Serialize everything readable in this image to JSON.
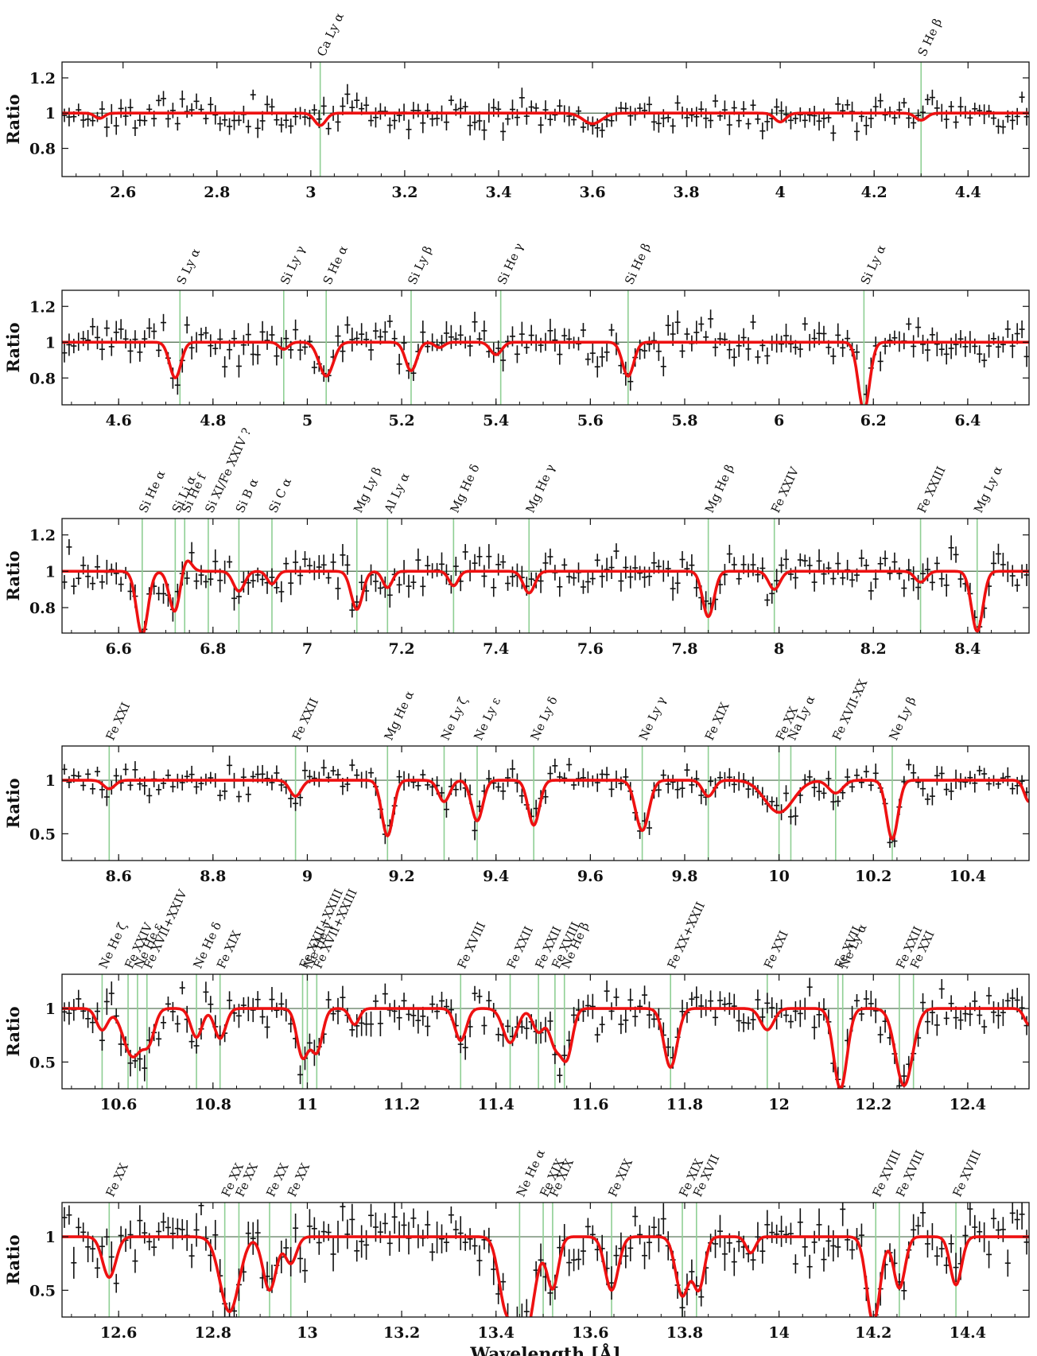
{
  "chart_data": [
    {
      "type": "line",
      "ylabel": "Ratio",
      "xlim": [
        2.47,
        4.53
      ],
      "ylim": [
        0.64,
        1.29
      ],
      "xticks": [
        2.6,
        2.8,
        3,
        3.2,
        3.4,
        3.6,
        3.8,
        4,
        4.2,
        4.4
      ],
      "xtick_labels": [
        "2.6",
        "2.8",
        "3",
        "3.2",
        "3.4",
        "3.6",
        "3.8",
        "4",
        "4.2",
        "4.4"
      ],
      "yticks": [
        0.8,
        1,
        1.2
      ],
      "ytick_labels": [
        "0.8",
        "1",
        "1.2"
      ],
      "reference_line": 1,
      "lines": [
        {
          "label": "Ca Ly α",
          "x": 3.02
        },
        {
          "label": "S He β",
          "x": 4.3
        }
      ],
      "absorption": [
        {
          "x": 2.55,
          "depth": 0.03,
          "width": 0.01
        },
        {
          "x": 3.02,
          "depth": 0.07,
          "width": 0.012
        },
        {
          "x": 3.6,
          "depth": 0.06,
          "width": 0.02
        },
        {
          "x": 4.0,
          "depth": 0.05,
          "width": 0.012
        },
        {
          "x": 4.3,
          "depth": 0.04,
          "width": 0.012
        }
      ],
      "scatter": 0.05,
      "seed": 11
    },
    {
      "type": "line",
      "ylabel": "Ratio",
      "xlim": [
        4.48,
        6.53
      ],
      "ylim": [
        0.65,
        1.29
      ],
      "xticks": [
        4.6,
        4.8,
        5,
        5.2,
        5.4,
        5.6,
        5.8,
        6,
        6.2,
        6.4
      ],
      "xtick_labels": [
        "4.6",
        "4.8",
        "5",
        "5.2",
        "5.4",
        "5.6",
        "5.8",
        "6",
        "6.2",
        "6.4"
      ],
      "yticks": [
        0.8,
        1,
        1.2
      ],
      "ytick_labels": [
        "0.8",
        "1",
        "1.2"
      ],
      "reference_line": 1,
      "lines": [
        {
          "label": "S Ly α",
          "x": 4.73
        },
        {
          "label": "Si Ly γ",
          "x": 4.95
        },
        {
          "label": "S He α",
          "x": 5.04
        },
        {
          "label": "Si Ly β",
          "x": 5.22
        },
        {
          "label": "Si He γ",
          "x": 5.41
        },
        {
          "label": "Si He β",
          "x": 5.68
        },
        {
          "label": "Si Ly α",
          "x": 6.18
        }
      ],
      "absorption": [
        {
          "x": 4.72,
          "depth": 0.2,
          "width": 0.012
        },
        {
          "x": 4.95,
          "depth": 0.04,
          "width": 0.01
        },
        {
          "x": 5.04,
          "depth": 0.19,
          "width": 0.015
        },
        {
          "x": 5.22,
          "depth": 0.16,
          "width": 0.012
        },
        {
          "x": 5.28,
          "depth": 0.03,
          "width": 0.01
        },
        {
          "x": 5.4,
          "depth": 0.07,
          "width": 0.012
        },
        {
          "x": 5.68,
          "depth": 0.19,
          "width": 0.012
        },
        {
          "x": 6.18,
          "depth": 0.38,
          "width": 0.012
        }
      ],
      "scatter": 0.06,
      "seed": 23
    },
    {
      "type": "line",
      "ylabel": "Ratio",
      "xlim": [
        6.48,
        8.53
      ],
      "ylim": [
        0.66,
        1.29
      ],
      "xticks": [
        6.6,
        6.8,
        7,
        7.2,
        7.4,
        7.6,
        7.8,
        8,
        8.2,
        8.4
      ],
      "xtick_labels": [
        "6.6",
        "6.8",
        "7",
        "7.2",
        "7.4",
        "7.6",
        "7.8",
        "8",
        "8.2",
        "8.4"
      ],
      "yticks": [
        0.8,
        1,
        1.2
      ],
      "ytick_labels": [
        "0.8",
        "1",
        "1.2"
      ],
      "reference_line": 1,
      "lines": [
        {
          "label": "Si He α",
          "x": 6.65
        },
        {
          "label": "Si Li α",
          "x": 6.72
        },
        {
          "label": "Si He f",
          "x": 6.74
        },
        {
          "label": "Si XI/Fe XXIV ?",
          "x": 6.79
        },
        {
          "label": "Si B α",
          "x": 6.855
        },
        {
          "label": "Si C α",
          "x": 6.925
        },
        {
          "label": "Mg Ly β",
          "x": 7.105
        },
        {
          "label": "Al Ly α",
          "x": 7.17
        },
        {
          "label": "Mg He δ",
          "x": 7.31
        },
        {
          "label": "Mg He γ",
          "x": 7.47
        },
        {
          "label": "Mg He β",
          "x": 7.85
        },
        {
          "label": "Fe XXIV",
          "x": 7.99
        },
        {
          "label": "Fe XXIII",
          "x": 8.3
        },
        {
          "label": "Mg Ly α",
          "x": 8.42
        }
      ],
      "absorption": [
        {
          "x": 6.65,
          "depth": 0.35,
          "width": 0.012
        },
        {
          "x": 6.72,
          "depth": 0.24,
          "width": 0.012
        },
        {
          "x": 6.74,
          "depth": -0.09,
          "width": 0.012
        },
        {
          "x": 6.855,
          "depth": 0.11,
          "width": 0.012
        },
        {
          "x": 6.925,
          "depth": 0.07,
          "width": 0.01
        },
        {
          "x": 7.105,
          "depth": 0.21,
          "width": 0.012
        },
        {
          "x": 7.17,
          "depth": 0.09,
          "width": 0.01
        },
        {
          "x": 7.31,
          "depth": 0.08,
          "width": 0.01
        },
        {
          "x": 7.47,
          "depth": 0.12,
          "width": 0.012
        },
        {
          "x": 7.85,
          "depth": 0.25,
          "width": 0.012
        },
        {
          "x": 7.99,
          "depth": 0.1,
          "width": 0.012
        },
        {
          "x": 8.3,
          "depth": 0.06,
          "width": 0.012
        },
        {
          "x": 8.42,
          "depth": 0.33,
          "width": 0.012
        }
      ],
      "scatter": 0.06,
      "seed": 37
    },
    {
      "type": "line",
      "ylabel": "Ratio",
      "xlim": [
        8.48,
        10.53
      ],
      "ylim": [
        0.25,
        1.32
      ],
      "xticks": [
        8.6,
        8.8,
        9,
        9.2,
        9.4,
        9.6,
        9.8,
        10,
        10.2,
        10.4
      ],
      "xtick_labels": [
        "8.6",
        "8.8",
        "9",
        "9.2",
        "9.4",
        "9.6",
        "9.8",
        "10",
        "10.2",
        "10.4"
      ],
      "yticks": [
        0.5,
        1
      ],
      "ytick_labels": [
        "0.5",
        "1"
      ],
      "reference_line": 1,
      "lines": [
        {
          "label": "Fe XXI",
          "x": 8.58
        },
        {
          "label": "Fe XXII",
          "x": 8.975
        },
        {
          "label": "Mg He α",
          "x": 9.17
        },
        {
          "label": "Ne Ly ζ",
          "x": 9.29
        },
        {
          "label": "Ne Ly ε",
          "x": 9.36
        },
        {
          "label": "Ne Ly δ",
          "x": 9.48
        },
        {
          "label": "Ne Ly γ",
          "x": 9.71
        },
        {
          "label": "Fe XIX",
          "x": 9.85
        },
        {
          "label": "Fe XX",
          "x": 10.0
        },
        {
          "label": "Na Ly α",
          "x": 10.025
        },
        {
          "label": "Fe XVII-XX",
          "x": 10.12
        },
        {
          "label": "Ne Ly β",
          "x": 10.24
        }
      ],
      "absorption": [
        {
          "x": 8.58,
          "depth": 0.08,
          "width": 0.012
        },
        {
          "x": 8.975,
          "depth": 0.15,
          "width": 0.012
        },
        {
          "x": 9.17,
          "depth": 0.52,
          "width": 0.012
        },
        {
          "x": 9.29,
          "depth": 0.2,
          "width": 0.012
        },
        {
          "x": 9.36,
          "depth": 0.38,
          "width": 0.012
        },
        {
          "x": 9.48,
          "depth": 0.42,
          "width": 0.012
        },
        {
          "x": 9.71,
          "depth": 0.47,
          "width": 0.014
        },
        {
          "x": 9.85,
          "depth": 0.15,
          "width": 0.012
        },
        {
          "x": 10.0,
          "depth": 0.3,
          "width": 0.03
        },
        {
          "x": 10.12,
          "depth": 0.12,
          "width": 0.015
        },
        {
          "x": 10.24,
          "depth": 0.55,
          "width": 0.012
        },
        {
          "x": 10.53,
          "depth": 0.2,
          "width": 0.01
        }
      ],
      "scatter": 0.08,
      "seed": 53
    },
    {
      "type": "line",
      "ylabel": "Ratio",
      "xlim": [
        10.48,
        12.53
      ],
      "ylim": [
        0.25,
        1.32
      ],
      "xticks": [
        10.6,
        10.8,
        11,
        11.2,
        11.4,
        11.6,
        11.8,
        12,
        12.2,
        12.4
      ],
      "xtick_labels": [
        "10.6",
        "10.8",
        "11",
        "11.2",
        "11.4",
        "11.6",
        "11.8",
        "12",
        "12.2",
        "12.4"
      ],
      "yticks": [
        0.5,
        1
      ],
      "ytick_labels": [
        "0.5",
        "1"
      ],
      "reference_line": 1,
      "lines": [
        {
          "label": "Ne He ζ",
          "x": 10.565
        },
        {
          "label": "Fe XXIV",
          "x": 10.62
        },
        {
          "label": "Ne He ε",
          "x": 10.64
        },
        {
          "label": "Fe XVII+XXIV",
          "x": 10.66
        },
        {
          "label": "Ne He δ",
          "x": 10.765
        },
        {
          "label": "Fe XIX",
          "x": 10.815
        },
        {
          "label": "Fe XXII+XXIII",
          "x": 10.99
        },
        {
          "label": "Ne He γ",
          "x": 11.0
        },
        {
          "label": "Fe XVII+XXIII",
          "x": 11.02
        },
        {
          "label": "Fe XVIII",
          "x": 11.325
        },
        {
          "label": "Fe XXII",
          "x": 11.43
        },
        {
          "label": "Fe XXII",
          "x": 11.49
        },
        {
          "label": "Fe XVIII",
          "x": 11.525
        },
        {
          "label": "Ne He β",
          "x": 11.545
        },
        {
          "label": "Fe XX+XXII",
          "x": 11.77
        },
        {
          "label": "Fe XXI",
          "x": 11.975
        },
        {
          "label": "Fe XVII",
          "x": 12.125
        },
        {
          "label": "Ne Ly α",
          "x": 12.135
        },
        {
          "label": "Fe XXII",
          "x": 12.255
        },
        {
          "label": "Fe XXI",
          "x": 12.285
        }
      ],
      "absorption": [
        {
          "x": 10.565,
          "depth": 0.2,
          "width": 0.012
        },
        {
          "x": 10.63,
          "depth": 0.45,
          "width": 0.02
        },
        {
          "x": 10.665,
          "depth": 0.25,
          "width": 0.012
        },
        {
          "x": 10.765,
          "depth": 0.27,
          "width": 0.012
        },
        {
          "x": 10.815,
          "depth": 0.28,
          "width": 0.012
        },
        {
          "x": 10.99,
          "depth": 0.45,
          "width": 0.012
        },
        {
          "x": 11.02,
          "depth": 0.4,
          "width": 0.012
        },
        {
          "x": 11.1,
          "depth": 0.15,
          "width": 0.01
        },
        {
          "x": 11.325,
          "depth": 0.3,
          "width": 0.012
        },
        {
          "x": 11.43,
          "depth": 0.32,
          "width": 0.015
        },
        {
          "x": 11.49,
          "depth": 0.22,
          "width": 0.012
        },
        {
          "x": 11.525,
          "depth": 0.33,
          "width": 0.012
        },
        {
          "x": 11.55,
          "depth": 0.45,
          "width": 0.012
        },
        {
          "x": 11.77,
          "depth": 0.55,
          "width": 0.014
        },
        {
          "x": 11.975,
          "depth": 0.2,
          "width": 0.014
        },
        {
          "x": 12.13,
          "depth": 0.75,
          "width": 0.014
        },
        {
          "x": 12.265,
          "depth": 0.72,
          "width": 0.018
        },
        {
          "x": 12.53,
          "depth": 0.15,
          "width": 0.01
        }
      ],
      "scatter": 0.11,
      "seed": 71
    },
    {
      "type": "line",
      "ylabel": "Ratio",
      "xlabel": "Wavelength [Å]",
      "xlim": [
        12.48,
        14.53
      ],
      "ylim": [
        0.25,
        1.32
      ],
      "xticks": [
        12.6,
        12.8,
        13,
        13.2,
        13.4,
        13.6,
        13.8,
        14,
        14.2,
        14.4
      ],
      "xtick_labels": [
        "12.6",
        "12.8",
        "13",
        "13.2",
        "13.4",
        "13.6",
        "13.8",
        "14",
        "14.2",
        "14.4"
      ],
      "yticks": [
        0.5,
        1
      ],
      "ytick_labels": [
        "0.5",
        "1"
      ],
      "reference_line": 1,
      "lines": [
        {
          "label": "Fe XX",
          "x": 12.58
        },
        {
          "label": "Fe XX",
          "x": 12.825
        },
        {
          "label": "Fe XX",
          "x": 12.855
        },
        {
          "label": "Fe XX",
          "x": 12.92
        },
        {
          "label": "Fe XX",
          "x": 12.965
        },
        {
          "label": "Ne He α",
          "x": 13.45
        },
        {
          "label": "Fe XIX",
          "x": 13.5
        },
        {
          "label": "Fe XIX",
          "x": 13.52
        },
        {
          "label": "Fe XIX",
          "x": 13.645
        },
        {
          "label": "Fe XIX",
          "x": 13.795
        },
        {
          "label": "Fe XVII",
          "x": 13.825
        },
        {
          "label": "Fe XVIII",
          "x": 14.205
        },
        {
          "label": "Fe XVIII",
          "x": 14.255
        },
        {
          "label": "Fe XVIII",
          "x": 14.375
        }
      ],
      "absorption": [
        {
          "x": 12.58,
          "depth": 0.38,
          "width": 0.014
        },
        {
          "x": 12.835,
          "depth": 0.7,
          "width": 0.02
        },
        {
          "x": 12.92,
          "depth": 0.5,
          "width": 0.014
        },
        {
          "x": 12.965,
          "depth": 0.25,
          "width": 0.012
        },
        {
          "x": 13.42,
          "depth": 0.58,
          "width": 0.015
        },
        {
          "x": 13.46,
          "depth": 0.95,
          "width": 0.02
        },
        {
          "x": 13.52,
          "depth": 0.48,
          "width": 0.012
        },
        {
          "x": 13.645,
          "depth": 0.5,
          "width": 0.014
        },
        {
          "x": 13.795,
          "depth": 0.55,
          "width": 0.014
        },
        {
          "x": 13.83,
          "depth": 0.48,
          "width": 0.012
        },
        {
          "x": 13.94,
          "depth": 0.15,
          "width": 0.01
        },
        {
          "x": 14.2,
          "depth": 0.8,
          "width": 0.014
        },
        {
          "x": 14.255,
          "depth": 0.48,
          "width": 0.012
        },
        {
          "x": 14.375,
          "depth": 0.45,
          "width": 0.012
        }
      ],
      "scatter": 0.14,
      "seed": 97
    }
  ],
  "style": {
    "data_color": "#111111",
    "model_color": "#ee1111",
    "line_marker_color": "#8fcf94",
    "reference_color": "#4a6a4a"
  }
}
